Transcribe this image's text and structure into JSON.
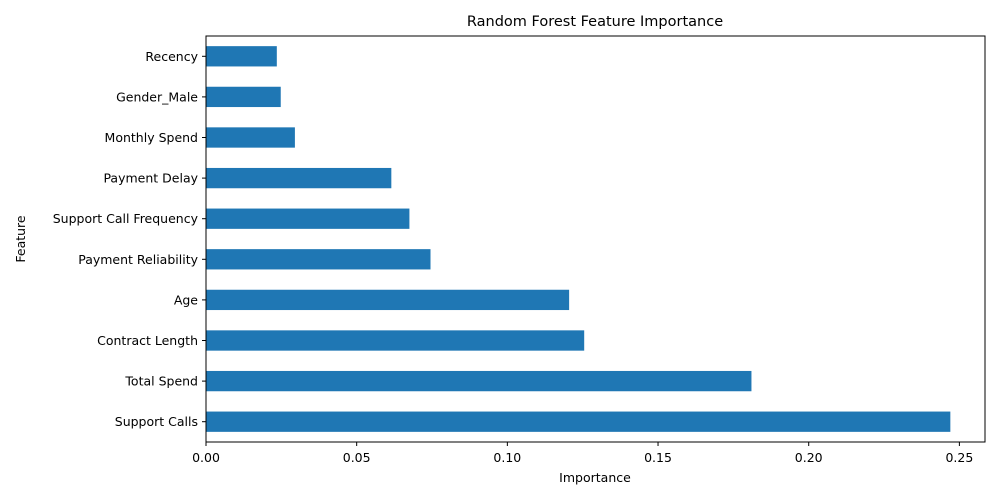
{
  "chart_data": {
    "type": "bar",
    "orientation": "horizontal",
    "title": "Random Forest Feature Importance",
    "xlabel": "Importance",
    "ylabel": "Feature",
    "categories": [
      "Support Calls",
      "Total Spend",
      "Contract Length",
      "Age",
      "Payment Reliability",
      "Support Call Frequency",
      "Payment Delay",
      "Monthly Spend",
      "Gender_Male",
      "Recency"
    ],
    "values": [
      0.247,
      0.181,
      0.1255,
      0.1205,
      0.0745,
      0.0675,
      0.0615,
      0.0295,
      0.0248,
      0.0235
    ],
    "xlim": [
      0,
      0.2585
    ],
    "xticks": [
      "0.00",
      "0.05",
      "0.10",
      "0.15",
      "0.20",
      "0.25"
    ],
    "xtick_values": [
      0,
      0.05,
      0.1,
      0.15,
      0.2,
      0.25
    ],
    "bar_color": "#1f77b4",
    "grid": false
  }
}
